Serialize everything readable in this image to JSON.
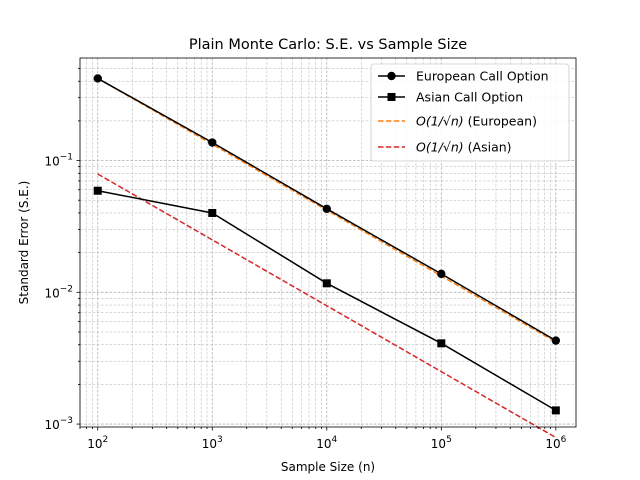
{
  "chart_data": {
    "type": "line",
    "title": "Plain Monte Carlo: S.E. vs Sample Size",
    "xlabel": "Sample Size (n)",
    "ylabel": "Standard Error (S.E.)",
    "xscale": "log",
    "yscale": "log",
    "xlim": [
      70,
      1500000
    ],
    "ylim": [
      0.00095,
      0.6
    ],
    "grid": true,
    "legend_position": "top-right",
    "x_ticks": [
      {
        "value": 100,
        "base": "10",
        "exp": "2"
      },
      {
        "value": 1000,
        "base": "10",
        "exp": "3"
      },
      {
        "value": 10000,
        "base": "10",
        "exp": "4"
      },
      {
        "value": 100000,
        "base": "10",
        "exp": "5"
      },
      {
        "value": 1000000,
        "base": "10",
        "exp": "6"
      }
    ],
    "y_ticks": [
      {
        "value": 0.001,
        "base": "10",
        "exp": "−3"
      },
      {
        "value": 0.01,
        "base": "10",
        "exp": "−2"
      },
      {
        "value": 0.1,
        "base": "10",
        "exp": "−1"
      }
    ],
    "x": [
      100,
      1000,
      10000,
      100000,
      1000000
    ],
    "series": [
      {
        "name": "European Call Option",
        "style": "solid",
        "marker": "circle",
        "color": "#000000",
        "values": [
          0.42,
          0.137,
          0.043,
          0.0138,
          0.0043
        ]
      },
      {
        "name": "Asian Call Option",
        "style": "solid",
        "marker": "square",
        "color": "#000000",
        "values": [
          0.059,
          0.04,
          0.0117,
          0.0041,
          0.00127
        ]
      },
      {
        "name_prefix": "O(1/√n)",
        "name_suffix": "(European)",
        "style": "dashed",
        "marker": "none",
        "color": "#ff7f0e",
        "values": [
          0.42,
          0.133,
          0.042,
          0.0133,
          0.0042
        ]
      },
      {
        "name_prefix": "O(1/√n)",
        "name_suffix": "(Asian)",
        "style": "dashed",
        "marker": "none",
        "color": "#d62728",
        "values": [
          0.079,
          0.025,
          0.0079,
          0.0025,
          0.00079
        ]
      }
    ]
  }
}
